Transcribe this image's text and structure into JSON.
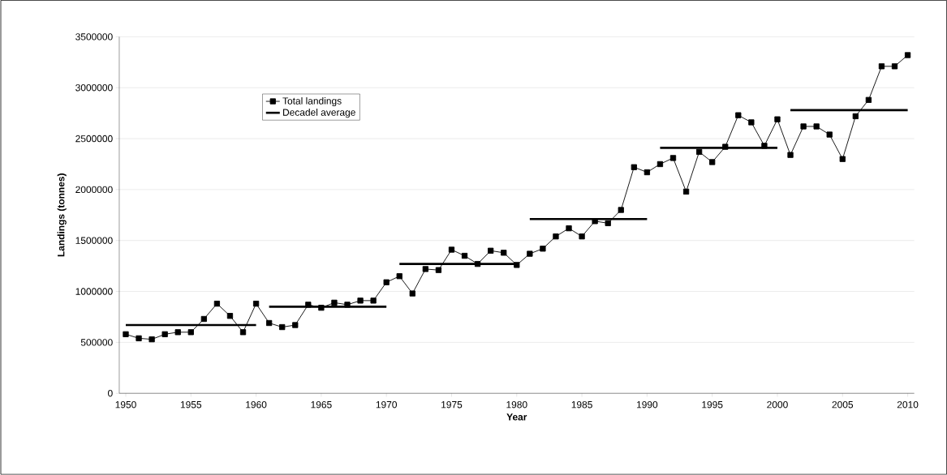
{
  "chart_data": {
    "type": "line",
    "xlabel": "Year",
    "ylabel": "Landings (tonnes)",
    "xlim": [
      1949.5,
      2010.5
    ],
    "xticks": [
      1950,
      1955,
      1960,
      1965,
      1970,
      1975,
      1980,
      1985,
      1990,
      1995,
      2000,
      2005,
      2010
    ],
    "ylim": [
      0,
      3500000
    ],
    "yticks": [
      0,
      500000,
      1000000,
      1500000,
      2000000,
      2500000,
      3000000,
      3500000
    ],
    "grid": "y",
    "legend": "top left",
    "series": [
      {
        "name": "Total landings",
        "color": "#000000",
        "marker": "square",
        "x": [
          1950,
          1951,
          1952,
          1953,
          1954,
          1955,
          1956,
          1957,
          1958,
          1959,
          1960,
          1961,
          1962,
          1963,
          1964,
          1965,
          1966,
          1967,
          1968,
          1969,
          1970,
          1971,
          1972,
          1973,
          1974,
          1975,
          1976,
          1977,
          1978,
          1979,
          1980,
          1981,
          1982,
          1983,
          1984,
          1985,
          1986,
          1987,
          1988,
          1989,
          1990,
          1991,
          1992,
          1993,
          1994,
          1995,
          1996,
          1997,
          1998,
          1999,
          2000,
          2001,
          2002,
          2003,
          2004,
          2005,
          2006,
          2007,
          2008,
          2009,
          2010
        ],
        "values": [
          580000,
          540000,
          530000,
          580000,
          600000,
          600000,
          730000,
          880000,
          760000,
          600000,
          880000,
          690000,
          650000,
          670000,
          870000,
          840000,
          890000,
          870000,
          910000,
          910000,
          1090000,
          1150000,
          980000,
          1220000,
          1210000,
          1410000,
          1350000,
          1270000,
          1400000,
          1380000,
          1260000,
          1370000,
          1420000,
          1540000,
          1620000,
          1540000,
          1690000,
          1670000,
          1800000,
          2220000,
          2170000,
          2250000,
          2310000,
          1980000,
          2370000,
          2270000,
          2420000,
          2730000,
          2660000,
          2430000,
          2690000,
          2340000,
          2620000,
          2620000,
          2540000,
          2300000,
          2720000,
          2880000,
          3210000,
          3210000,
          3320000
        ]
      },
      {
        "name": "Decadel average",
        "color": "#000000",
        "marker": "none",
        "x": [
          1950,
          1960
        ],
        "values": [
          670000,
          670000
        ]
      },
      {
        "color": "#000000",
        "marker": "none",
        "x": [
          1961,
          1970
        ],
        "values": [
          850000,
          850000
        ]
      },
      {
        "color": "#000000",
        "marker": "none",
        "x": [
          1971,
          1980
        ],
        "values": [
          1270000,
          1270000
        ]
      },
      {
        "color": "#000000",
        "marker": "none",
        "x": [
          1981,
          1990
        ],
        "values": [
          1710000,
          1710000
        ]
      },
      {
        "color": "#000000",
        "marker": "none",
        "x": [
          1991,
          2000
        ],
        "values": [
          2410000,
          2410000
        ]
      },
      {
        "color": "#000000",
        "marker": "none",
        "x": [
          2001,
          2010
        ],
        "values": [
          2780000,
          2780000
        ]
      }
    ]
  }
}
